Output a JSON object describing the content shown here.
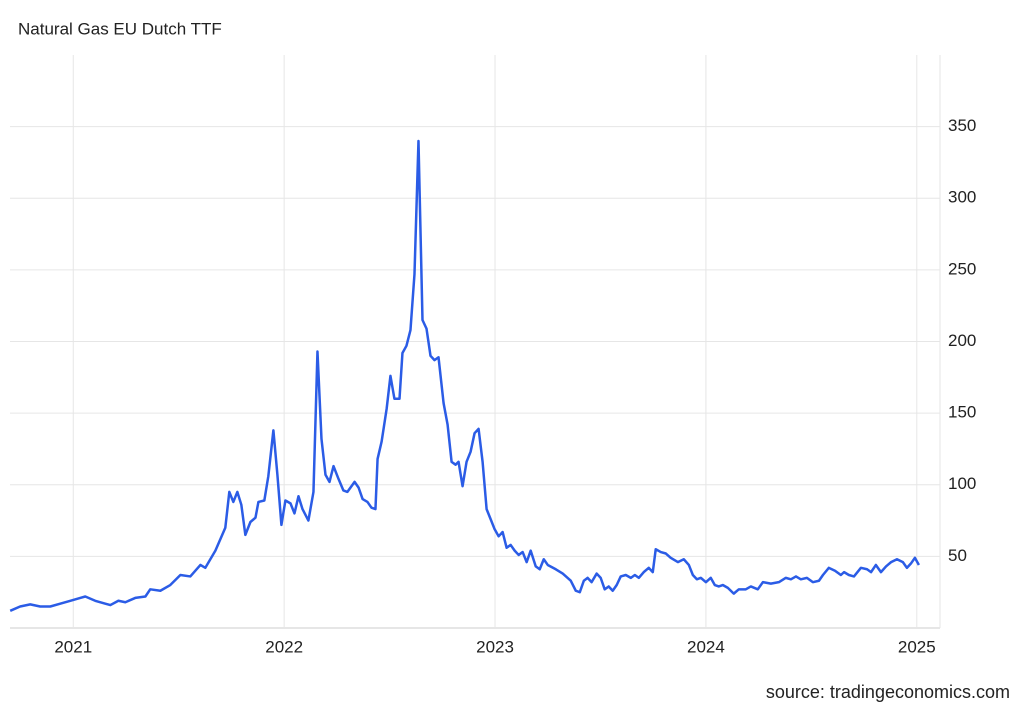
{
  "chart_data": {
    "type": "line",
    "title": "Natural Gas EU Dutch TTF",
    "source": "source: tradingeconomics.com",
    "color": "#2b5ce6",
    "grid": true,
    "xlim": [
      2020.7,
      2025.11
    ],
    "xticks": [
      2021,
      2022,
      2023,
      2024,
      2025
    ],
    "ylim": [
      0,
      400
    ],
    "yticks": [
      50,
      100,
      150,
      200,
      250,
      300,
      350
    ],
    "x": [
      2020.701,
      2020.748,
      2020.796,
      2020.843,
      2020.891,
      2020.938,
      2020.986,
      2021.033,
      2021.057,
      2021.104,
      2021.152,
      2021.176,
      2021.214,
      2021.247,
      2021.294,
      2021.342,
      2021.365,
      2021.413,
      2021.46,
      2021.508,
      2021.555,
      2021.603,
      2021.626,
      2021.674,
      2021.721,
      2021.74,
      2021.759,
      2021.778,
      2021.797,
      2021.816,
      2021.84,
      2021.864,
      2021.878,
      2021.906,
      2021.925,
      2021.949,
      2021.968,
      2021.987,
      2022.006,
      2022.03,
      2022.049,
      2022.068,
      2022.087,
      2022.115,
      2022.139,
      2022.158,
      2022.177,
      2022.196,
      2022.215,
      2022.234,
      2022.258,
      2022.281,
      2022.3,
      2022.334,
      2022.353,
      2022.372,
      2022.395,
      2022.414,
      2022.433,
      2022.443,
      2022.462,
      2022.486,
      2022.504,
      2022.523,
      2022.547,
      2022.561,
      2022.58,
      2022.599,
      2022.618,
      2022.637,
      2022.656,
      2022.675,
      2022.694,
      2022.713,
      2022.732,
      2022.756,
      2022.775,
      2022.794,
      2022.813,
      2022.827,
      2022.846,
      2022.865,
      2022.884,
      2022.903,
      2022.922,
      2022.941,
      2022.96,
      2022.979,
      2022.998,
      2023.017,
      2023.036,
      2023.055,
      2023.074,
      2023.093,
      2023.112,
      2023.131,
      2023.15,
      2023.169,
      2023.193,
      2023.212,
      2023.231,
      2023.25,
      2023.288,
      2023.321,
      2023.359,
      2023.383,
      2023.402,
      2023.421,
      2023.439,
      2023.458,
      2023.482,
      2023.501,
      2023.52,
      2023.539,
      2023.558,
      2023.577,
      2023.596,
      2023.62,
      2023.644,
      2023.663,
      2023.682,
      2023.705,
      2023.729,
      2023.748,
      2023.762,
      2023.786,
      2023.81,
      2023.833,
      2023.867,
      2023.895,
      2023.919,
      2023.938,
      2023.957,
      2023.976,
      2024.0,
      2024.023,
      2024.042,
      2024.061,
      2024.08,
      2024.104,
      2024.132,
      2024.156,
      2024.189,
      2024.213,
      2024.246,
      2024.27,
      2024.308,
      2024.346,
      2024.379,
      2024.403,
      2024.427,
      2024.45,
      2024.479,
      2024.507,
      2024.536,
      2024.555,
      2024.583,
      2024.612,
      2024.64,
      2024.655,
      2024.678,
      2024.702,
      2024.735,
      2024.764,
      2024.783,
      2024.806,
      2024.83,
      2024.854,
      2024.878,
      2024.906,
      2024.934,
      2024.953,
      2024.972,
      2024.991,
      2025.01
    ],
    "values": [
      12,
      15,
      16.5,
      15,
      15,
      17,
      19,
      21,
      22,
      19,
      17,
      16,
      19,
      18,
      21,
      22,
      27,
      26,
      30,
      37,
      36,
      44,
      42,
      54,
      70,
      95,
      88,
      95,
      86,
      65,
      74,
      77,
      88,
      89,
      106,
      138,
      107,
      72,
      89,
      87,
      80,
      92,
      83,
      75,
      95,
      193,
      132,
      107,
      102,
      113,
      104,
      96,
      95,
      102,
      98,
      90,
      88,
      84,
      83,
      118,
      130,
      153,
      176,
      160,
      160,
      192,
      197,
      208,
      247,
      340,
      215,
      209,
      190,
      187,
      189,
      157,
      142,
      116,
      114,
      116,
      99,
      116,
      123,
      136,
      139,
      116,
      83,
      76,
      69,
      64,
      67,
      56,
      58,
      54,
      51,
      53,
      46,
      54,
      43,
      41,
      48,
      44,
      41,
      38,
      33,
      26,
      25,
      33,
      35,
      32,
      38,
      35,
      27,
      29,
      26,
      30,
      36,
      37,
      35,
      37,
      35,
      39,
      42,
      39,
      55,
      53,
      52,
      49,
      46,
      48,
      44,
      37,
      34,
      35,
      32,
      35,
      30,
      29,
      30,
      28,
      24,
      27,
      27,
      29,
      27,
      32,
      31,
      32,
      35,
      34,
      36,
      34,
      35,
      32,
      33,
      37,
      42,
      40,
      37,
      39,
      37,
      36,
      42,
      41,
      39,
      44,
      39,
      43,
      46,
      48,
      46,
      42,
      45,
      49,
      44
    ]
  }
}
